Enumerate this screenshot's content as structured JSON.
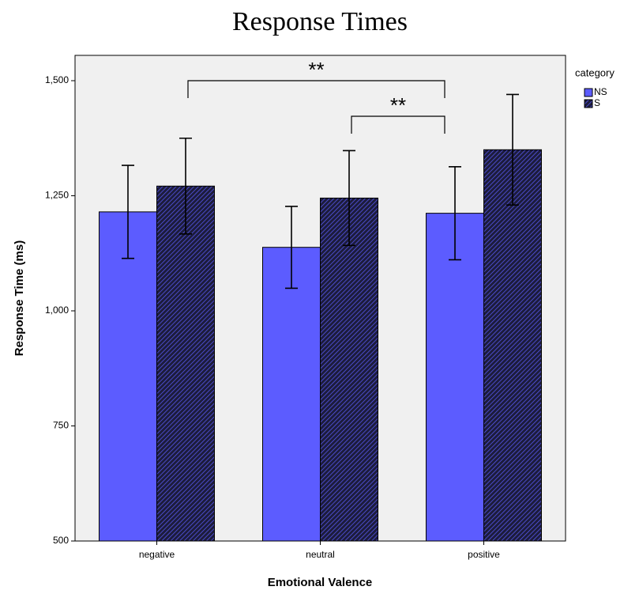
{
  "chart_data": {
    "type": "bar",
    "title": "Response Times",
    "x_label": "Emotional Valence",
    "y_label": "Response Time (ms)",
    "categories": [
      "negative",
      "neutral",
      "positive"
    ],
    "series": [
      {
        "name": "NS",
        "color": "#5c5cff",
        "values": [
          1215,
          1138,
          1212
        ],
        "errors": [
          101,
          89,
          101
        ]
      },
      {
        "name": "S",
        "color": "#1c1c3c",
        "hatch": "#5c5cff",
        "values": [
          1271,
          1245,
          1350
        ],
        "errors": [
          104,
          103,
          120
        ]
      }
    ],
    "ylim": [
      500,
      1555
    ],
    "yticks": [
      500,
      750,
      {
        "value": 1000,
        "label": "1,000"
      },
      {
        "value": 1250,
        "label": "1,250"
      },
      {
        "value": 1500,
        "label": "1,500"
      }
    ],
    "legend_title": "category",
    "legend_position": "right",
    "annotations": [
      {
        "text": "**"
      },
      {
        "text": "**"
      }
    ],
    "background": "#f0f0f0"
  }
}
